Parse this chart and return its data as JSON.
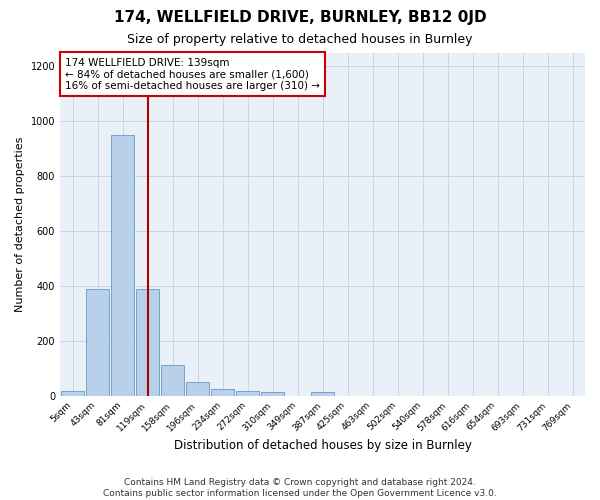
{
  "title": "174, WELLFIELD DRIVE, BURNLEY, BB12 0JD",
  "subtitle": "Size of property relative to detached houses in Burnley",
  "xlabel": "Distribution of detached houses by size in Burnley",
  "ylabel": "Number of detached properties",
  "bar_labels": [
    "5sqm",
    "43sqm",
    "81sqm",
    "119sqm",
    "158sqm",
    "196sqm",
    "234sqm",
    "272sqm",
    "310sqm",
    "349sqm",
    "387sqm",
    "425sqm",
    "463sqm",
    "502sqm",
    "540sqm",
    "578sqm",
    "616sqm",
    "654sqm",
    "693sqm",
    "731sqm",
    "769sqm"
  ],
  "bar_values": [
    15,
    390,
    950,
    390,
    110,
    50,
    25,
    18,
    13,
    0,
    13,
    0,
    0,
    0,
    0,
    0,
    0,
    0,
    0,
    0,
    0
  ],
  "bar_color": "#b8d0e8",
  "bar_edgecolor": "#6699cc",
  "vline_color": "#aa0000",
  "vline_x": 3.026,
  "annotation_text": "174 WELLFIELD DRIVE: 139sqm\n← 84% of detached houses are smaller (1,600)\n16% of semi-detached houses are larger (310) →",
  "annotation_box_color": "#cc0000",
  "ylim": [
    0,
    1250
  ],
  "yticks": [
    0,
    200,
    400,
    600,
    800,
    1000,
    1200
  ],
  "grid_color": "#c8d4e8",
  "background_color": "#eaf0f8",
  "footer_line1": "Contains HM Land Registry data © Crown copyright and database right 2024.",
  "footer_line2": "Contains public sector information licensed under the Open Government Licence v3.0.",
  "title_fontsize": 11,
  "subtitle_fontsize": 9,
  "annotation_fontsize": 7.5,
  "footer_fontsize": 6.5,
  "ylabel_fontsize": 8,
  "xlabel_fontsize": 8.5,
  "tick_fontsize": 6.5
}
